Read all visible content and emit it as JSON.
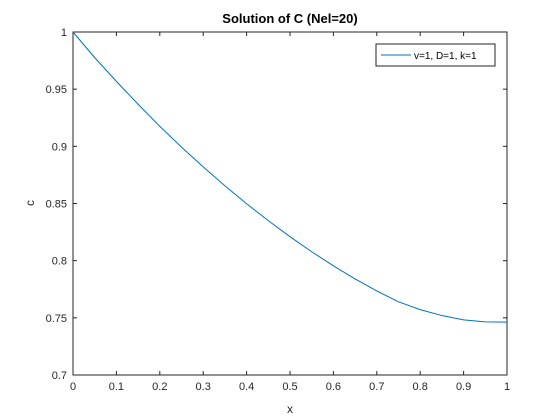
{
  "chart_data": {
    "type": "line",
    "title": "Solution of C (Nel=20)",
    "xlabel": "x",
    "ylabel": "c",
    "xlim": [
      0,
      1
    ],
    "ylim": [
      0.7,
      1
    ],
    "xticks": [
      0,
      0.1,
      0.2,
      0.3,
      0.4,
      0.5,
      0.6,
      0.7,
      0.8,
      0.9,
      1
    ],
    "xtick_labels": [
      "0",
      "0.1",
      "0.2",
      "0.3",
      "0.4",
      "0.5",
      "0.6",
      "0.7",
      "0.8",
      "0.9",
      "1"
    ],
    "yticks": [
      0.7,
      0.75,
      0.8,
      0.85,
      0.9,
      0.95,
      1
    ],
    "ytick_labels": [
      "0.7",
      "0.75",
      "0.8",
      "0.85",
      "0.9",
      "0.95",
      "1"
    ],
    "grid": false,
    "legend_position": "top-right",
    "series": [
      {
        "name": "v=1, D=1, k=1",
        "color": "#0072bd",
        "x": [
          0,
          0.05,
          0.1,
          0.15,
          0.2,
          0.25,
          0.3,
          0.35,
          0.4,
          0.45,
          0.5,
          0.55,
          0.6,
          0.65,
          0.7,
          0.75,
          0.8,
          0.85,
          0.9,
          0.95,
          1
        ],
        "y": [
          1.0,
          0.9776,
          0.9568,
          0.9368,
          0.9175,
          0.8993,
          0.882,
          0.8655,
          0.8498,
          0.835,
          0.821,
          0.8078,
          0.7955,
          0.784,
          0.7735,
          0.764,
          0.7572,
          0.752,
          0.7482,
          0.7465,
          0.7462
        ]
      }
    ]
  }
}
